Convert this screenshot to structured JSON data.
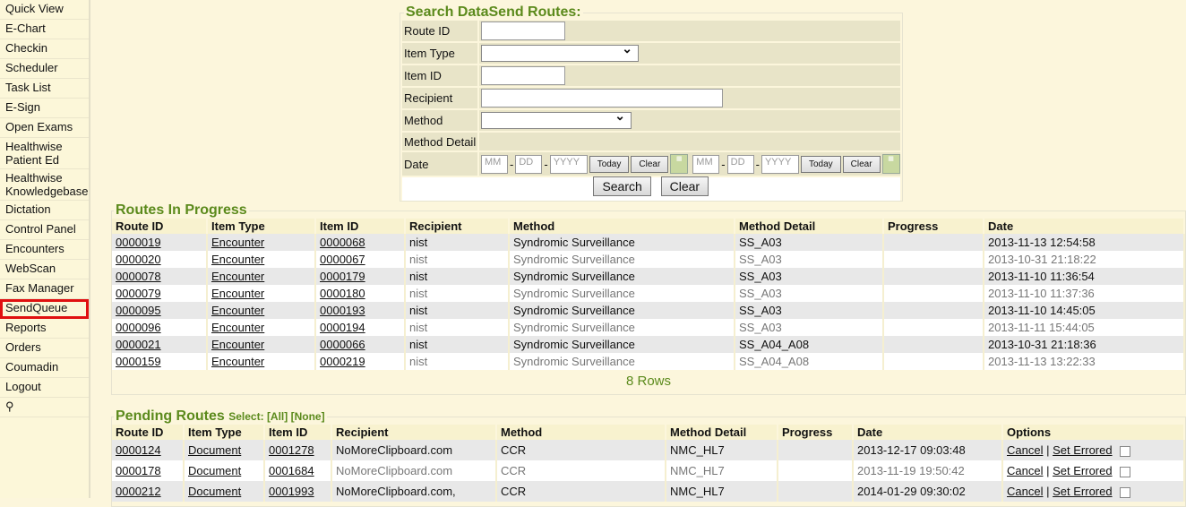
{
  "sidebar": {
    "items": [
      "Quick View",
      "E-Chart",
      "Checkin",
      "Scheduler",
      "Task List",
      "E-Sign",
      "Open Exams",
      "Healthwise Patient Ed",
      "Healthwise Knowledgebase",
      "Dictation",
      "Control Panel",
      "Encounters",
      "WebScan",
      "Fax Manager",
      "SendQueue",
      "Reports",
      "Orders",
      "Coumadin",
      "Logout"
    ],
    "selected": "SendQueue",
    "footer_icon": "plug-icon"
  },
  "search": {
    "title": "Search DataSend Routes:",
    "route_id": "Route ID",
    "item_type": "Item Type",
    "item_id": "Item ID",
    "recipient": "Recipient",
    "method": "Method",
    "method_detail": "Method Detail",
    "date": "Date",
    "mm": "MM",
    "dd": "DD",
    "yyyy": "YYYY",
    "today": "Today",
    "clear": "Clear",
    "search_btn": "Search",
    "clear_btn": "Clear"
  },
  "progress": {
    "title": "Routes In Progress",
    "columns": [
      "Route ID",
      "Item Type",
      "Item ID",
      "Recipient",
      "Method",
      "Method Detail",
      "Progress",
      "Date"
    ],
    "rows": [
      [
        "0000019",
        "Encounter",
        "0000068",
        "nist",
        "Syndromic Surveillance",
        "SS_A03",
        "",
        "2013-11-13 12:54:58"
      ],
      [
        "0000020",
        "Encounter",
        "0000067",
        "nist",
        "Syndromic Surveillance",
        "SS_A03",
        "",
        "2013-10-31 21:18:22"
      ],
      [
        "0000078",
        "Encounter",
        "0000179",
        "nist",
        "Syndromic Surveillance",
        "SS_A03",
        "",
        "2013-11-10 11:36:54"
      ],
      [
        "0000079",
        "Encounter",
        "0000180",
        "nist",
        "Syndromic Surveillance",
        "SS_A03",
        "",
        "2013-11-10 11:37:36"
      ],
      [
        "0000095",
        "Encounter",
        "0000193",
        "nist",
        "Syndromic Surveillance",
        "SS_A03",
        "",
        "2013-11-10 14:45:05"
      ],
      [
        "0000096",
        "Encounter",
        "0000194",
        "nist",
        "Syndromic Surveillance",
        "SS_A03",
        "",
        "2013-11-11 15:44:05"
      ],
      [
        "0000021",
        "Encounter",
        "0000066",
        "nist",
        "Syndromic Surveillance",
        "SS_A04_A08",
        "",
        "2013-10-31 21:18:36"
      ],
      [
        "0000159",
        "Encounter",
        "0000219",
        "nist",
        "Syndromic Surveillance",
        "SS_A04_A08",
        "",
        "2013-11-13 13:22:33"
      ]
    ],
    "count": "8 Rows"
  },
  "pending": {
    "title": "Pending Routes",
    "select": "Select:",
    "all": "[All]",
    "none": "[None]",
    "columns": [
      "Route ID",
      "Item Type",
      "Item ID",
      "Recipient",
      "Method",
      "Method Detail",
      "Progress",
      "Date",
      "Options"
    ],
    "cancel": "Cancel",
    "sep": "|",
    "set_errored": "Set Errored",
    "rows": [
      [
        "0000124",
        "Document",
        "0001278",
        "NoMoreClipboard.com",
        "CCR",
        "NMC_HL7",
        "",
        "2013-12-17 09:03:48"
      ],
      [
        "0000178",
        "Document",
        "0001684",
        "NoMoreClipboard.com",
        "CCR",
        "NMC_HL7",
        "",
        "2013-11-19 19:50:42"
      ],
      [
        "0000212",
        "Document",
        "0001993",
        "NoMoreClipboard.com,",
        "CCR",
        "NMC_HL7",
        "",
        "2014-01-29 09:30:02"
      ]
    ]
  }
}
